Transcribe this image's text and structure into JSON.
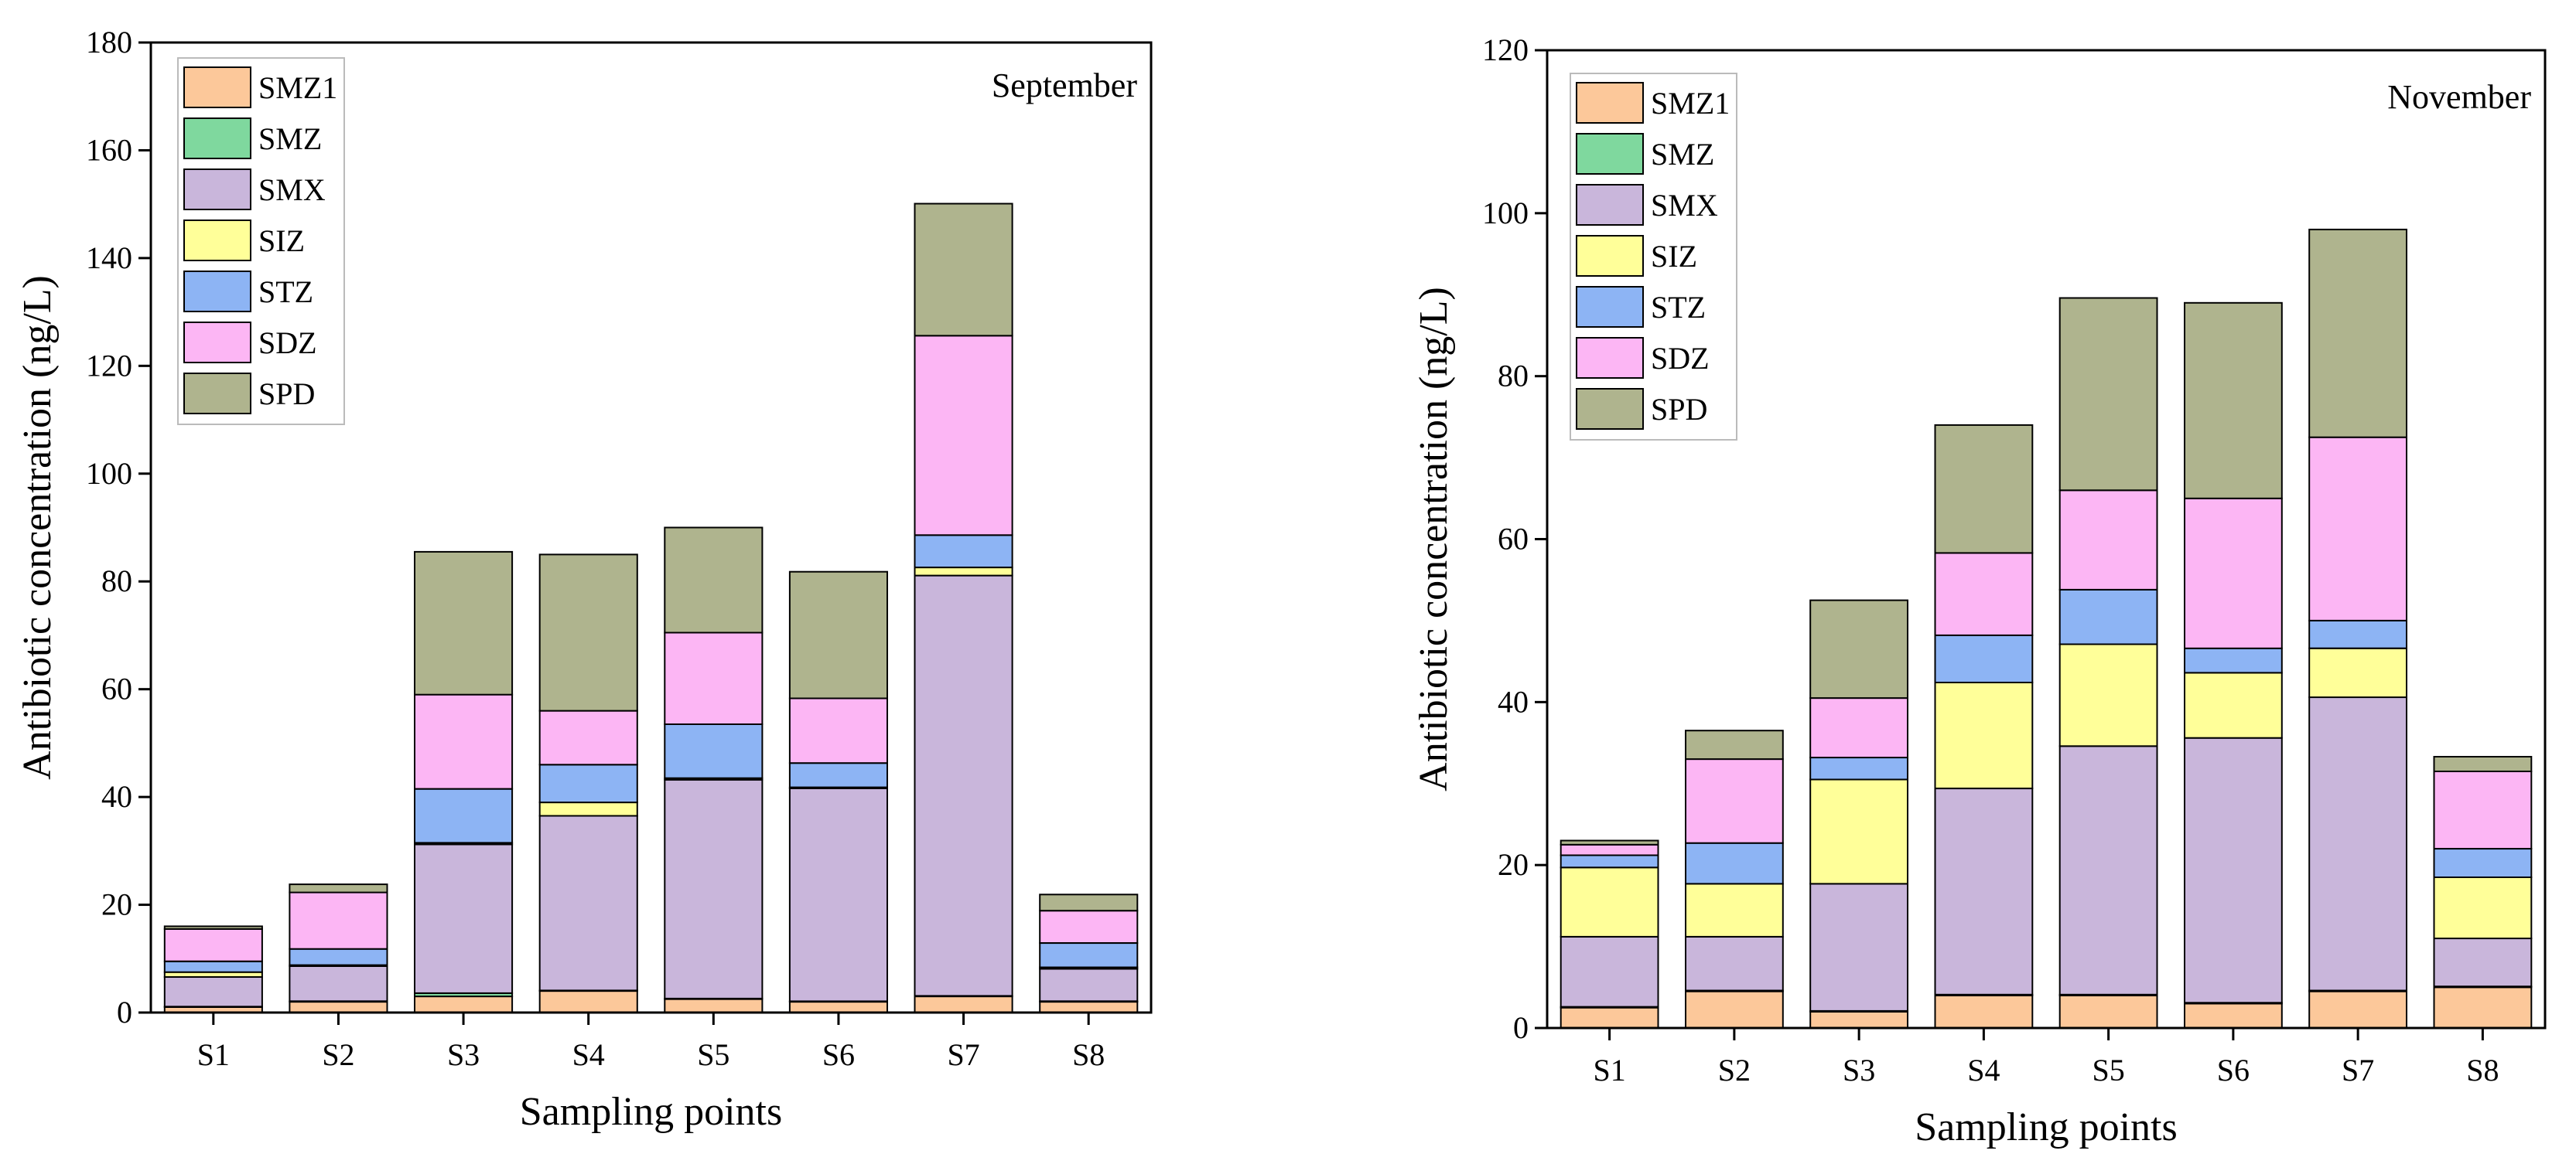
{
  "chart_data": [
    {
      "type": "bar",
      "stacked": true,
      "title": "September",
      "xlabel": "Sampling points",
      "ylabel": "Antibiotic concentration (ng/L)",
      "ylim": [
        0,
        180
      ],
      "yticks": [
        0,
        20,
        40,
        60,
        80,
        100,
        120,
        140,
        160,
        180
      ],
      "categories": [
        "S1",
        "S2",
        "S3",
        "S4",
        "S5",
        "S6",
        "S7",
        "S8"
      ],
      "legend_position": "top-left",
      "series": [
        {
          "name": "SMZ1",
          "color": "#FCC89A",
          "values": [
            1.0,
            2.0,
            3.0,
            4.0,
            2.5,
            2.0,
            3.0,
            2.0
          ]
        },
        {
          "name": "SMZ",
          "color": "#7FD89E",
          "values": [
            0.1,
            0.1,
            0.6,
            0.1,
            0.1,
            0.1,
            0.1,
            0.1
          ]
        },
        {
          "name": "SMX",
          "color": "#C9B6DB",
          "values": [
            5.5,
            6.5,
            27.6,
            32.4,
            40.6,
            39.5,
            78.0,
            6.0
          ]
        },
        {
          "name": "SIZ",
          "color": "#FFFF99",
          "values": [
            0.9,
            0.2,
            0.3,
            2.5,
            0.3,
            0.2,
            1.5,
            0.3
          ]
        },
        {
          "name": "STZ",
          "color": "#8DB4F4",
          "values": [
            2.0,
            3.0,
            10.0,
            7.0,
            10.0,
            4.5,
            6.0,
            4.5
          ]
        },
        {
          "name": "SDZ",
          "color": "#FCB6F4",
          "values": [
            6.0,
            10.5,
            17.5,
            10.0,
            17.0,
            12.0,
            37.0,
            6.0
          ]
        },
        {
          "name": "SPD",
          "color": "#AFB48E",
          "values": [
            0.5,
            1.5,
            26.5,
            29.0,
            19.5,
            23.5,
            24.5,
            3.0
          ]
        }
      ]
    },
    {
      "type": "bar",
      "stacked": true,
      "title": "November",
      "xlabel": "Sampling points",
      "ylabel": "Antibiotic concentration (ng/L)",
      "ylim": [
        0,
        120
      ],
      "yticks": [
        0,
        20,
        40,
        60,
        80,
        100,
        120
      ],
      "categories": [
        "S1",
        "S2",
        "S3",
        "S4",
        "S5",
        "S6",
        "S7",
        "S8"
      ],
      "legend_position": "top-left",
      "series": [
        {
          "name": "SMZ1",
          "color": "#FCC89A",
          "values": [
            2.5,
            4.5,
            2.0,
            4.0,
            4.0,
            3.0,
            4.5,
            5.0
          ]
        },
        {
          "name": "SMZ",
          "color": "#7FD89E",
          "values": [
            0.1,
            0.1,
            0.1,
            0.1,
            0.1,
            0.1,
            0.1,
            0.1
          ]
        },
        {
          "name": "SMX",
          "color": "#C9B6DB",
          "values": [
            8.6,
            6.6,
            15.6,
            25.3,
            30.5,
            32.5,
            36.0,
            5.9
          ]
        },
        {
          "name": "SIZ",
          "color": "#FFFF99",
          "values": [
            8.5,
            6.5,
            12.8,
            13.0,
            12.5,
            8.0,
            6.0,
            7.5
          ]
        },
        {
          "name": "STZ",
          "color": "#8DB4F4",
          "values": [
            1.5,
            5.0,
            2.7,
            5.8,
            6.7,
            3.0,
            3.4,
            3.5
          ]
        },
        {
          "name": "SDZ",
          "color": "#FCB6F4",
          "values": [
            1.3,
            10.3,
            7.3,
            10.1,
            12.2,
            18.4,
            22.5,
            9.5
          ]
        },
        {
          "name": "SPD",
          "color": "#AFB48E",
          "values": [
            0.5,
            3.5,
            12.0,
            15.7,
            23.6,
            24.0,
            25.5,
            1.8
          ]
        }
      ]
    }
  ]
}
